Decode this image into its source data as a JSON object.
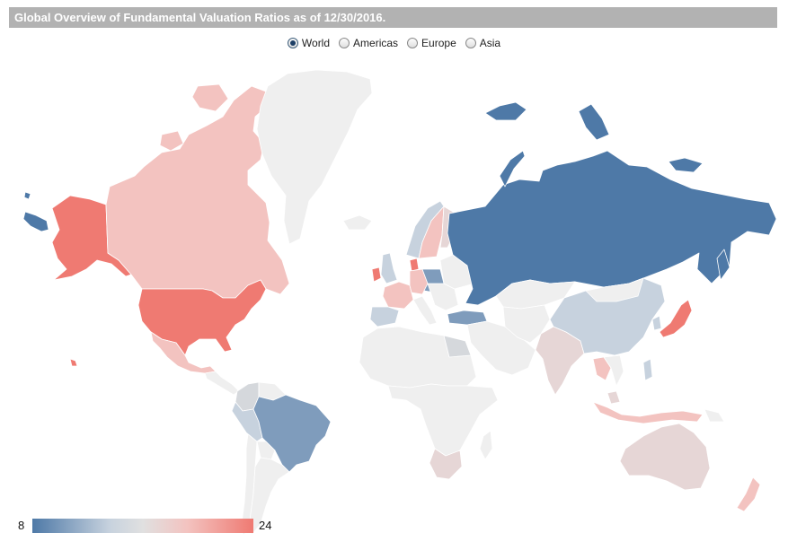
{
  "title": "Global Overview of Fundamental Valuation Ratios as of 12/30/2016.",
  "region_options": [
    {
      "label": "World",
      "selected": true
    },
    {
      "label": "Americas",
      "selected": false
    },
    {
      "label": "Europe",
      "selected": false
    },
    {
      "label": "Asia",
      "selected": false
    }
  ],
  "legend": {
    "min": "8",
    "max": "24",
    "color_low": "#4e79a7",
    "color_mid": "#e0e0e0",
    "color_high": "#ef7a72"
  },
  "colors": {
    "no_data": "#efefef",
    "border": "#ffffff"
  }
}
